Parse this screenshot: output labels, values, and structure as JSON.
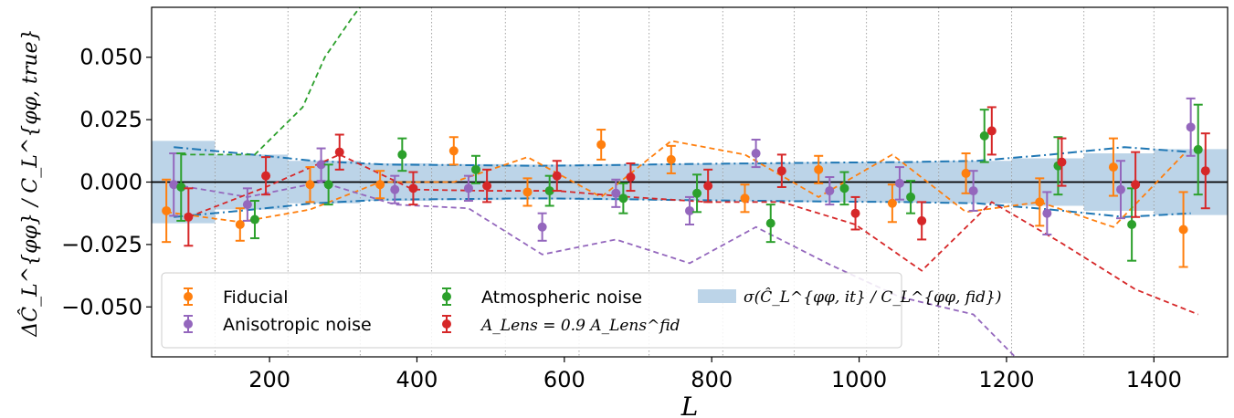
{
  "chart_data": {
    "type": "scatter",
    "xlabel": "L",
    "ylabel": "ΔĈ_L^{φφ} / C_L^{φφ, true}",
    "xlim": [
      40,
      1500
    ],
    "ylim": [
      -0.07,
      0.07
    ],
    "x_ticks": [
      200,
      400,
      600,
      800,
      1000,
      1200,
      1400
    ],
    "x_tick_labels": [
      "200",
      "400",
      "600",
      "800",
      "1000",
      "1200",
      "1400"
    ],
    "y_ticks": [
      -0.05,
      -0.025,
      0.0,
      0.025,
      0.05
    ],
    "y_tick_labels": [
      "−0.050",
      "−0.025",
      "0.000",
      "0.025",
      "0.050"
    ],
    "vertical_gridlines": [
      126,
      225,
      323,
      420,
      520,
      620,
      715,
      815,
      912,
      1010,
      1108,
      1207,
      1305,
      1400
    ],
    "legend_position": "lower-left",
    "colors": {
      "fiducial": "#ff7f0e",
      "anisotropic": "#9467bd",
      "atmospheric": "#2ca02c",
      "alens": "#d62728",
      "band": "#bcd4e8",
      "dashdot": "#1f77b4"
    },
    "band": {
      "label": "σ(Ĉ_L^{φφ, it} / C_L^{φφ, fid})",
      "x_edges": [
        40,
        126,
        225,
        323,
        420,
        520,
        620,
        715,
        815,
        912,
        1010,
        1108,
        1207,
        1305,
        1400,
        1500
      ],
      "half_width": [
        0.0165,
        0.011,
        0.0085,
        0.0075,
        0.0072,
        0.007,
        0.0072,
        0.0074,
        0.0077,
        0.008,
        0.0082,
        0.0085,
        0.0095,
        0.0115,
        0.0132
      ]
    },
    "dashdot_upper": {
      "x": [
        70,
        160,
        260,
        360,
        460,
        560,
        660,
        760,
        860,
        960,
        1060,
        1160,
        1260,
        1360,
        1450
      ],
      "y": [
        0.014,
        0.0115,
        0.0085,
        0.007,
        0.0068,
        0.0065,
        0.0068,
        0.0072,
        0.0075,
        0.0078,
        0.008,
        0.0085,
        0.011,
        0.014,
        0.012
      ]
    },
    "dashdot_lower": {
      "x": [
        70,
        160,
        260,
        360,
        460,
        560,
        660,
        760,
        860,
        960,
        1060,
        1160,
        1260,
        1360,
        1450
      ],
      "y": [
        -0.014,
        -0.0115,
        -0.0085,
        -0.007,
        -0.0068,
        -0.0065,
        -0.0068,
        -0.0072,
        -0.0075,
        -0.0078,
        -0.008,
        -0.0085,
        -0.011,
        -0.014,
        -0.0125
      ]
    },
    "series": [
      {
        "name": "Fiducial",
        "key": "fiducial",
        "x": [
          60,
          160,
          255,
          350,
          450,
          550,
          650,
          745,
          845,
          945,
          1045,
          1145,
          1245,
          1345,
          1440
        ],
        "y": [
          -0.0115,
          -0.017,
          -0.001,
          -0.001,
          0.0125,
          -0.004,
          0.015,
          0.009,
          -0.0065,
          0.005,
          -0.0085,
          0.0035,
          -0.008,
          0.006,
          -0.019
        ],
        "err": [
          0.0125,
          0.0065,
          0.007,
          0.0055,
          0.0055,
          0.0055,
          0.006,
          0.0055,
          0.0055,
          0.0055,
          0.0075,
          0.008,
          0.0095,
          0.0115,
          0.015
        ],
        "theory_x": [
          60,
          160,
          255,
          350,
          450,
          550,
          650,
          745,
          845,
          945,
          1045,
          1145,
          1245,
          1345,
          1440
        ],
        "theory_y": [
          -0.012,
          -0.016,
          -0.011,
          0.0,
          0.0,
          0.01,
          -0.006,
          0.0165,
          0.011,
          -0.006,
          0.011,
          -0.012,
          -0.008,
          -0.018,
          0.011
        ]
      },
      {
        "name": "Anisotropic noise",
        "key": "anisotropic",
        "x": [
          70,
          170,
          270,
          370,
          470,
          570,
          670,
          770,
          860,
          960,
          1055,
          1155,
          1255,
          1355,
          1450
        ],
        "y": [
          -0.001,
          -0.009,
          0.007,
          -0.003,
          -0.0025,
          -0.018,
          -0.0045,
          -0.0115,
          0.0115,
          -0.0035,
          -0.0005,
          -0.0035,
          -0.0125,
          -0.003,
          0.022
        ],
        "err": [
          0.0125,
          0.0065,
          0.0065,
          0.0055,
          0.005,
          0.0055,
          0.0055,
          0.0055,
          0.0055,
          0.0055,
          0.0065,
          0.008,
          0.0085,
          0.0115,
          0.0115
        ],
        "theory_x": [
          70,
          170,
          270,
          370,
          470,
          570,
          670,
          770,
          860,
          960,
          1055,
          1155,
          1255,
          1355,
          1450
        ],
        "theory_y": [
          -0.001,
          -0.006,
          0.0,
          -0.009,
          -0.0105,
          -0.029,
          -0.023,
          -0.0325,
          -0.018,
          -0.033,
          -0.046,
          -0.053,
          -0.083,
          -0.09,
          -0.09
        ]
      },
      {
        "name": "Atmospheric noise",
        "key": "atmospheric",
        "x": [
          80,
          180,
          280,
          380,
          480,
          580,
          680,
          780,
          880,
          980,
          1070,
          1170,
          1270,
          1370,
          1460
        ],
        "y": [
          -0.002,
          -0.015,
          -0.001,
          0.011,
          0.005,
          -0.0035,
          -0.0065,
          -0.0045,
          -0.0165,
          -0.0025,
          -0.006,
          0.0185,
          0.0065,
          -0.017,
          0.013
        ],
        "err": [
          0.0135,
          0.0075,
          0.008,
          0.0065,
          0.0055,
          0.006,
          0.006,
          0.0075,
          0.0075,
          0.0065,
          0.0065,
          0.0105,
          0.0115,
          0.0145,
          0.018
        ],
        "theory_x": [
          80,
          180,
          245,
          275,
          310,
          335
        ],
        "theory_y": [
          0.011,
          0.011,
          0.03,
          0.05,
          0.065,
          0.075
        ]
      },
      {
        "name": "A_Lens = 0.9 A_Lens^fid",
        "key": "alens",
        "x": [
          90,
          195,
          295,
          395,
          495,
          590,
          690,
          795,
          895,
          995,
          1085,
          1180,
          1275,
          1375,
          1470
        ],
        "y": [
          -0.014,
          0.0025,
          0.012,
          -0.0025,
          -0.0015,
          0.0025,
          0.002,
          -0.0015,
          0.0045,
          -0.0125,
          -0.0155,
          0.0205,
          0.008,
          -0.001,
          0.0045
        ],
        "err": [
          0.0115,
          0.0075,
          0.007,
          0.0065,
          0.0065,
          0.006,
          0.0055,
          0.0065,
          0.0065,
          0.0065,
          0.0075,
          0.0095,
          0.0095,
          0.013,
          0.015
        ],
        "theory_x": [
          90,
          195,
          295,
          395,
          495,
          590,
          690,
          795,
          895,
          995,
          1085,
          1180,
          1275,
          1375,
          1460
        ],
        "theory_y": [
          -0.014,
          -0.002,
          0.011,
          -0.003,
          -0.0035,
          -0.0035,
          -0.006,
          -0.008,
          -0.008,
          -0.017,
          -0.0355,
          -0.008,
          -0.0245,
          -0.043,
          -0.053
        ]
      }
    ]
  }
}
